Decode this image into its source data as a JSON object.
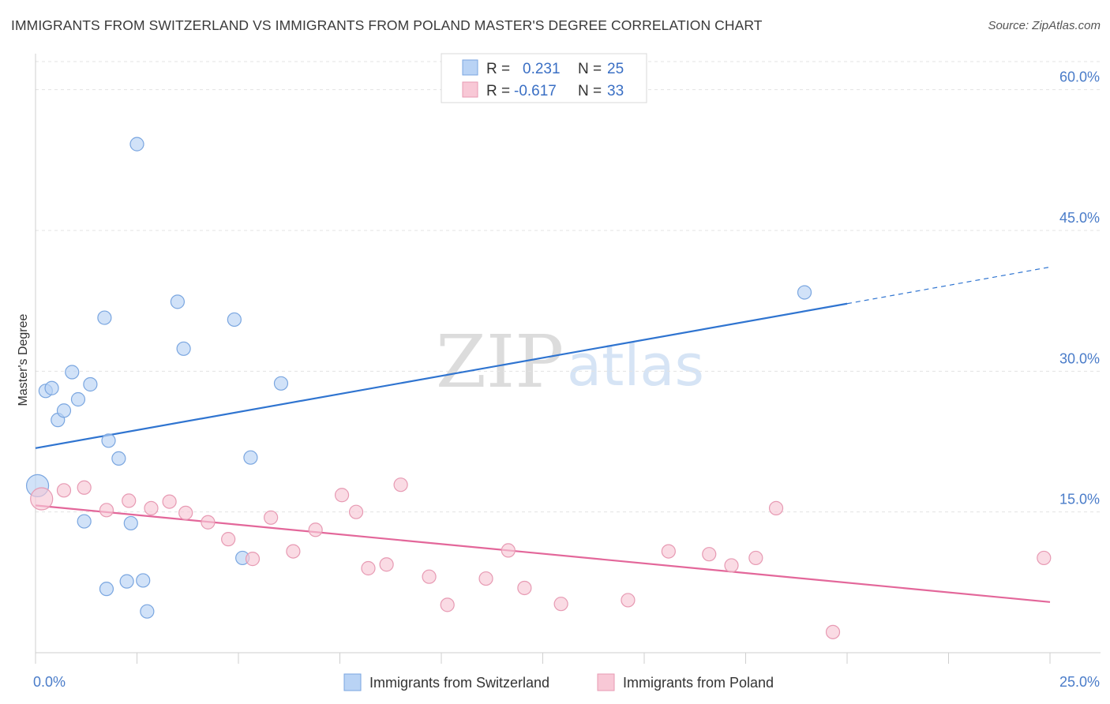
{
  "title": "IMMIGRANTS FROM SWITZERLAND VS IMMIGRANTS FROM POLAND MASTER'S DEGREE CORRELATION CHART",
  "source": "Source: ZipAtlas.com",
  "watermark": {
    "zip": "ZIP",
    "atlas": "atlas"
  },
  "legend_top": [
    {
      "r_label": "R =",
      "r_value": "0.231",
      "n_label": "N =",
      "n_value": "25",
      "color": "#b9d3f5",
      "stroke": "#7aa6e0"
    },
    {
      "r_label": "R =",
      "r_value": "-0.617",
      "n_label": "N =",
      "n_value": "33",
      "color": "#f8c8d6",
      "stroke": "#e79ab3"
    }
  ],
  "chart_data": {
    "type": "scatter",
    "title": "IMMIGRANTS FROM SWITZERLAND VS IMMIGRANTS FROM POLAND MASTER'S DEGREE CORRELATION CHART",
    "xlabel": "",
    "ylabel": "Master's Degree",
    "xlim": [
      0,
      25
    ],
    "ylim": [
      0,
      63
    ],
    "x_ticks": [
      0,
      2.5,
      5,
      7.5,
      10,
      12.5,
      15,
      17.5,
      20,
      22.5,
      25
    ],
    "x_tick_labels": {
      "0": "0.0%",
      "25": "25.0%"
    },
    "y_ticks": [
      15,
      30,
      45,
      60
    ],
    "y_tick_labels": [
      "15.0%",
      "30.0%",
      "45.0%",
      "60.0%"
    ],
    "grid": true,
    "legend_position": "top-center",
    "series": [
      {
        "name": "Immigrants from Switzerland",
        "color": "#b9d3f5",
        "stroke": "#7aa6e0",
        "line_color": "#2f74d0",
        "trend": {
          "x0": 0,
          "y0": 21.8,
          "x1": 20,
          "y1": 37.2,
          "dash_to_x": 25,
          "dash_to_y": 41.1
        },
        "points": [
          [
            0.05,
            17.8
          ],
          [
            0.25,
            27.9
          ],
          [
            0.4,
            28.2
          ],
          [
            0.55,
            24.8
          ],
          [
            0.7,
            25.8
          ],
          [
            0.9,
            29.9
          ],
          [
            1.05,
            27.0
          ],
          [
            1.35,
            28.6
          ],
          [
            1.2,
            14.0
          ],
          [
            1.8,
            22.6
          ],
          [
            2.05,
            20.7
          ],
          [
            1.7,
            35.7
          ],
          [
            2.5,
            54.2
          ],
          [
            3.5,
            37.4
          ],
          [
            3.65,
            32.4
          ],
          [
            4.9,
            35.5
          ],
          [
            6.05,
            28.7
          ],
          [
            5.3,
            20.8
          ],
          [
            5.1,
            10.1
          ],
          [
            2.35,
            13.8
          ],
          [
            1.75,
            6.8
          ],
          [
            2.25,
            7.6
          ],
          [
            2.65,
            7.7
          ],
          [
            2.75,
            4.4
          ],
          [
            18.95,
            38.4
          ]
        ]
      },
      {
        "name": "Immigrants from Poland",
        "color": "#f8c8d6",
        "stroke": "#e79ab3",
        "line_color": "#e3679a",
        "trend": {
          "x0": 0,
          "y0": 15.7,
          "x1": 25,
          "y1": 5.4
        },
        "points": [
          [
            0.15,
            16.4
          ],
          [
            0.7,
            17.3
          ],
          [
            1.2,
            17.6
          ],
          [
            1.75,
            15.2
          ],
          [
            2.3,
            16.2
          ],
          [
            2.85,
            15.4
          ],
          [
            3.3,
            16.1
          ],
          [
            3.7,
            14.9
          ],
          [
            4.25,
            13.9
          ],
          [
            4.75,
            12.1
          ],
          [
            5.35,
            10.0
          ],
          [
            5.8,
            14.4
          ],
          [
            6.35,
            10.8
          ],
          [
            6.9,
            13.1
          ],
          [
            7.55,
            16.8
          ],
          [
            7.9,
            15.0
          ],
          [
            8.2,
            9.0
          ],
          [
            8.65,
            9.4
          ],
          [
            9.0,
            17.9
          ],
          [
            9.7,
            8.1
          ],
          [
            10.15,
            5.1
          ],
          [
            11.1,
            7.9
          ],
          [
            11.65,
            10.9
          ],
          [
            12.05,
            6.9
          ],
          [
            12.95,
            5.2
          ],
          [
            14.6,
            5.6
          ],
          [
            15.6,
            10.8
          ],
          [
            16.6,
            10.5
          ],
          [
            17.15,
            9.3
          ],
          [
            17.75,
            10.1
          ],
          [
            18.25,
            15.4
          ],
          [
            19.65,
            2.2
          ],
          [
            24.85,
            10.1
          ]
        ]
      }
    ]
  }
}
